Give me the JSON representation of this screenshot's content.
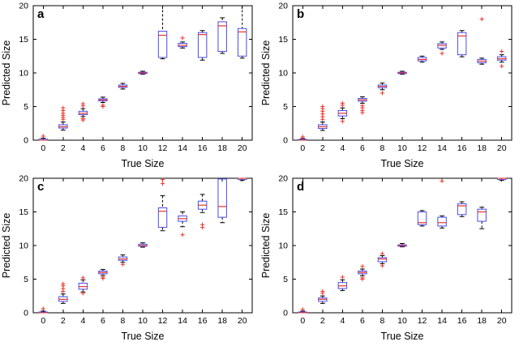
{
  "figure": {
    "axes": {
      "xlim": [
        -1,
        21
      ],
      "ylim": [
        0,
        20
      ],
      "x_ticks": [
        0,
        2,
        4,
        6,
        8,
        10,
        12,
        14,
        16,
        18,
        20
      ],
      "y_ticks": [
        0,
        5,
        10,
        15,
        20
      ]
    },
    "colors": {
      "box": "#4b4bf0",
      "median": "#e8342a",
      "whisker": "#000000",
      "outlier": "#e8342a",
      "axis": "#000000"
    }
  },
  "chart_data": [
    {
      "type": "boxplot",
      "label": "a",
      "xlabel": "True Size",
      "ylabel": "Predicted Size",
      "boxes": [
        {
          "x": 0,
          "q1": 0,
          "med": 0,
          "q3": 0.15,
          "wlo": 0,
          "whi": 0.3,
          "out": [
            0.6
          ]
        },
        {
          "x": 2,
          "q1": 1.8,
          "med": 2,
          "q3": 2.3,
          "wlo": 1.5,
          "whi": 2.7,
          "out": [
            3.1,
            3.4,
            3.7,
            4.0,
            4.4,
            4.8
          ]
        },
        {
          "x": 4,
          "q1": 3.8,
          "med": 4,
          "q3": 4.3,
          "wlo": 3.5,
          "whi": 4.7,
          "out": [
            3.0,
            3.2,
            5.1,
            5.4
          ]
        },
        {
          "x": 6,
          "q1": 5.85,
          "med": 6,
          "q3": 6.15,
          "wlo": 5.6,
          "whi": 6.4,
          "out": [
            5.0,
            5.2
          ]
        },
        {
          "x": 8,
          "q1": 7.85,
          "med": 8,
          "q3": 8.2,
          "wlo": 7.6,
          "whi": 8.45,
          "out": []
        },
        {
          "x": 10,
          "q1": 9.9,
          "med": 10,
          "q3": 10.1,
          "wlo": 9.8,
          "whi": 10.25,
          "out": []
        },
        {
          "x": 12,
          "q1": 12.3,
          "med": 15.6,
          "q3": 16.2,
          "wlo": 12.1,
          "whi": 20,
          "out": []
        },
        {
          "x": 14,
          "q1": 13.9,
          "med": 14.1,
          "q3": 14.4,
          "wlo": 13.7,
          "whi": 14.6,
          "out": [
            15.2
          ]
        },
        {
          "x": 16,
          "q1": 12.3,
          "med": 15.7,
          "q3": 16.0,
          "wlo": 11.9,
          "whi": 16.3,
          "out": []
        },
        {
          "x": 18,
          "q1": 13.2,
          "med": 17.0,
          "q3": 17.6,
          "wlo": 12.9,
          "whi": 18.2,
          "out": []
        },
        {
          "x": 20,
          "q1": 12.5,
          "med": 16.1,
          "q3": 16.6,
          "wlo": 12.2,
          "whi": 20,
          "out": []
        }
      ]
    },
    {
      "type": "boxplot",
      "label": "b",
      "xlabel": "True Size",
      "ylabel": "Predicted Size",
      "boxes": [
        {
          "x": 0,
          "q1": 0,
          "med": 0,
          "q3": 0.12,
          "wlo": 0,
          "whi": 0.25,
          "out": [
            0.5
          ]
        },
        {
          "x": 2,
          "q1": 1.75,
          "med": 2,
          "q3": 2.3,
          "wlo": 1.45,
          "whi": 2.7,
          "out": [
            3.1,
            3.5,
            3.9,
            4.3,
            4.7,
            5.0
          ]
        },
        {
          "x": 4,
          "q1": 3.6,
          "med": 4,
          "q3": 4.4,
          "wlo": 3.2,
          "whi": 4.8,
          "out": [
            2.8,
            5.2,
            5.5
          ]
        },
        {
          "x": 6,
          "q1": 5.8,
          "med": 6,
          "q3": 6.2,
          "wlo": 5.5,
          "whi": 6.45,
          "out": [
            4.1,
            4.4,
            4.8,
            5.1
          ]
        },
        {
          "x": 8,
          "q1": 7.8,
          "med": 8,
          "q3": 8.2,
          "wlo": 7.5,
          "whi": 8.5,
          "out": [
            7.0
          ]
        },
        {
          "x": 10,
          "q1": 9.9,
          "med": 10,
          "q3": 10.1,
          "wlo": 9.8,
          "whi": 10.25,
          "out": []
        },
        {
          "x": 12,
          "q1": 11.8,
          "med": 12,
          "q3": 12.3,
          "wlo": 11.6,
          "whi": 12.5,
          "out": []
        },
        {
          "x": 14,
          "q1": 13.7,
          "med": 14.1,
          "q3": 14.35,
          "wlo": 13.5,
          "whi": 14.6,
          "out": [
            12.9
          ]
        },
        {
          "x": 16,
          "q1": 12.7,
          "med": 15.5,
          "q3": 16.0,
          "wlo": 12.4,
          "whi": 16.3,
          "out": []
        },
        {
          "x": 18,
          "q1": 11.5,
          "med": 11.75,
          "q3": 12.0,
          "wlo": 11.3,
          "whi": 12.2,
          "out": [
            18.0
          ]
        },
        {
          "x": 20,
          "q1": 11.9,
          "med": 12.1,
          "q3": 12.4,
          "wlo": 11.6,
          "whi": 12.7,
          "out": [
            11.0,
            13.2
          ]
        }
      ]
    },
    {
      "type": "boxplot",
      "label": "c",
      "xlabel": "True Size",
      "ylabel": "Predicted Size",
      "boxes": [
        {
          "x": 0,
          "q1": 0,
          "med": 0,
          "q3": 0.12,
          "wlo": 0,
          "whi": 0.25,
          "out": [
            0.6
          ]
        },
        {
          "x": 2,
          "q1": 1.7,
          "med": 2,
          "q3": 2.4,
          "wlo": 1.4,
          "whi": 2.8,
          "out": [
            3.2,
            3.6,
            4.0,
            4.3
          ]
        },
        {
          "x": 4,
          "q1": 3.5,
          "med": 3.9,
          "q3": 4.4,
          "wlo": 3.1,
          "whi": 4.9,
          "out": [
            2.9,
            5.2
          ]
        },
        {
          "x": 6,
          "q1": 5.8,
          "med": 6,
          "q3": 6.2,
          "wlo": 5.55,
          "whi": 6.45,
          "out": [
            5.1,
            5.3
          ]
        },
        {
          "x": 8,
          "q1": 7.8,
          "med": 8,
          "q3": 8.3,
          "wlo": 7.5,
          "whi": 8.6,
          "out": [
            7.2
          ]
        },
        {
          "x": 10,
          "q1": 9.9,
          "med": 10,
          "q3": 10.2,
          "wlo": 9.75,
          "whi": 10.4,
          "out": []
        },
        {
          "x": 12,
          "q1": 12.7,
          "med": 15.1,
          "q3": 15.6,
          "wlo": 12.2,
          "whi": 17.4,
          "out": [
            19.2,
            19.8
          ]
        },
        {
          "x": 14,
          "q1": 13.6,
          "med": 14.0,
          "q3": 14.4,
          "wlo": 12.8,
          "whi": 15.0,
          "out": [
            11.6
          ]
        },
        {
          "x": 16,
          "q1": 15.4,
          "med": 16.0,
          "q3": 16.6,
          "wlo": 14.9,
          "whi": 17.6,
          "out": [
            12.7,
            13.1
          ]
        },
        {
          "x": 18,
          "q1": 14.2,
          "med": 15.8,
          "q3": 19.9,
          "wlo": 13.4,
          "whi": 20,
          "out": []
        },
        {
          "x": 20,
          "q1": 19.8,
          "med": 20,
          "q3": 20,
          "wlo": 19.7,
          "whi": 20,
          "out": [
            20
          ]
        }
      ]
    },
    {
      "type": "boxplot",
      "label": "d",
      "xlabel": "True Size",
      "ylabel": "Predicted Size",
      "boxes": [
        {
          "x": 0,
          "q1": 0,
          "med": 0,
          "q3": 0.12,
          "wlo": 0,
          "whi": 0.25,
          "out": [
            0.5
          ]
        },
        {
          "x": 2,
          "q1": 1.7,
          "med": 2,
          "q3": 2.2,
          "wlo": 1.4,
          "whi": 2.5,
          "out": [
            2.9,
            3.2
          ]
        },
        {
          "x": 4,
          "q1": 3.6,
          "med": 4,
          "q3": 4.5,
          "wlo": 3.3,
          "whi": 4.9,
          "out": [
            5.3
          ]
        },
        {
          "x": 6,
          "q1": 5.8,
          "med": 6,
          "q3": 6.2,
          "wlo": 5.5,
          "whi": 6.5,
          "out": [
            5.0,
            5.2,
            6.9
          ]
        },
        {
          "x": 8,
          "q1": 7.6,
          "med": 8,
          "q3": 8.2,
          "wlo": 7.3,
          "whi": 8.5,
          "out": [
            7.0,
            8.8
          ]
        },
        {
          "x": 10,
          "q1": 9.9,
          "med": 10,
          "q3": 10.1,
          "wlo": 9.8,
          "whi": 10.3,
          "out": []
        },
        {
          "x": 12,
          "q1": 13.1,
          "med": 13.4,
          "q3": 15.0,
          "wlo": 12.9,
          "whi": 15.2,
          "out": []
        },
        {
          "x": 14,
          "q1": 12.9,
          "med": 13.4,
          "q3": 14.2,
          "wlo": 12.6,
          "whi": 14.4,
          "out": [
            19.6
          ]
        },
        {
          "x": 16,
          "q1": 14.6,
          "med": 15.9,
          "q3": 16.2,
          "wlo": 14.3,
          "whi": 16.5,
          "out": []
        },
        {
          "x": 18,
          "q1": 13.6,
          "med": 15.0,
          "q3": 15.4,
          "wlo": 12.5,
          "whi": 15.7,
          "out": []
        },
        {
          "x": 20,
          "q1": 19.8,
          "med": 20,
          "q3": 20,
          "wlo": 19.7,
          "whi": 20,
          "out": [
            20
          ]
        }
      ]
    }
  ]
}
